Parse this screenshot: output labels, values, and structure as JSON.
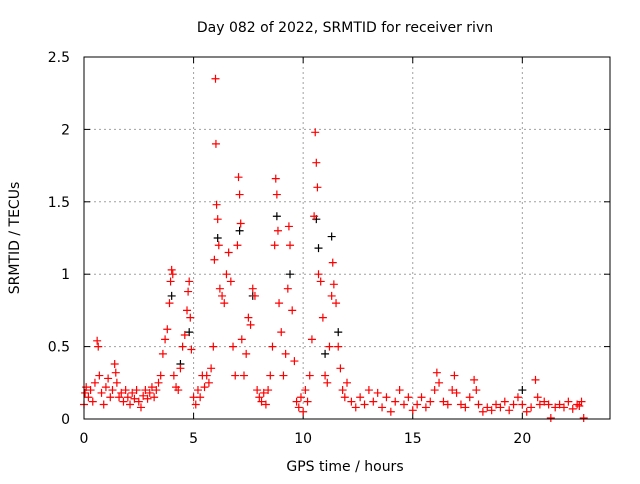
{
  "chart_data": {
    "type": "scatter",
    "title": "Day 082 of 2022, SRMTID for receiver rivn",
    "xlabel": "GPS time / hours",
    "ylabel": "SRMTID / TECUs",
    "xlim": [
      0,
      24
    ],
    "ylim": [
      0,
      2.5
    ],
    "xticks": [
      0,
      5,
      10,
      15,
      20
    ],
    "yticks": [
      0,
      0.5,
      1,
      1.5,
      2,
      2.5
    ],
    "xtick_labels": [
      "0",
      "5",
      "10",
      "15",
      "20"
    ],
    "ytick_labels": [
      "0",
      "0.5",
      "1",
      "1.5",
      "2",
      "2.5"
    ],
    "grid": true,
    "colors": {
      "primary": "#ff0000",
      "secondary": "#000000",
      "grid": "#a0a0a0"
    },
    "series": [
      {
        "name": "secondary",
        "color": "#000000",
        "points": [
          [
            4.0,
            0.85
          ],
          [
            4.8,
            0.6
          ],
          [
            6.1,
            1.25
          ],
          [
            7.1,
            1.3
          ],
          [
            7.7,
            0.85
          ],
          [
            8.8,
            1.4
          ],
          [
            9.4,
            1.0
          ],
          [
            10.6,
            1.38
          ],
          [
            10.7,
            1.18
          ],
          [
            11.3,
            1.26
          ],
          [
            11.0,
            0.45
          ],
          [
            11.6,
            0.6
          ],
          [
            20.0,
            0.2
          ],
          [
            4.4,
            0.38
          ]
        ]
      },
      {
        "name": "primary",
        "color": "#ff0000",
        "points": [
          [
            0.0,
            0.1
          ],
          [
            0.05,
            0.18
          ],
          [
            0.1,
            0.22
          ],
          [
            0.2,
            0.15
          ],
          [
            0.3,
            0.2
          ],
          [
            0.4,
            0.12
          ],
          [
            0.5,
            0.25
          ],
          [
            0.6,
            0.54
          ],
          [
            0.65,
            0.5
          ],
          [
            0.7,
            0.3
          ],
          [
            0.8,
            0.18
          ],
          [
            0.9,
            0.1
          ],
          [
            1.0,
            0.22
          ],
          [
            1.1,
            0.28
          ],
          [
            1.2,
            0.15
          ],
          [
            1.3,
            0.2
          ],
          [
            1.4,
            0.38
          ],
          [
            1.45,
            0.32
          ],
          [
            1.5,
            0.25
          ],
          [
            1.6,
            0.15
          ],
          [
            1.7,
            0.18
          ],
          [
            1.8,
            0.12
          ],
          [
            1.9,
            0.2
          ],
          [
            2.0,
            0.15
          ],
          [
            2.1,
            0.1
          ],
          [
            2.2,
            0.18
          ],
          [
            2.3,
            0.14
          ],
          [
            2.4,
            0.2
          ],
          [
            2.5,
            0.12
          ],
          [
            2.6,
            0.08
          ],
          [
            2.7,
            0.16
          ],
          [
            2.8,
            0.2
          ],
          [
            2.9,
            0.14
          ],
          [
            3.0,
            0.18
          ],
          [
            3.1,
            0.22
          ],
          [
            3.2,
            0.15
          ],
          [
            3.3,
            0.2
          ],
          [
            3.4,
            0.25
          ],
          [
            3.5,
            0.3
          ],
          [
            3.6,
            0.45
          ],
          [
            3.7,
            0.55
          ],
          [
            3.8,
            0.62
          ],
          [
            3.9,
            0.8
          ],
          [
            3.95,
            0.95
          ],
          [
            4.0,
            1.03
          ],
          [
            4.05,
            1.0
          ],
          [
            4.1,
            0.3
          ],
          [
            4.2,
            0.22
          ],
          [
            4.3,
            0.2
          ],
          [
            4.4,
            0.35
          ],
          [
            4.5,
            0.5
          ],
          [
            4.6,
            0.58
          ],
          [
            4.7,
            0.75
          ],
          [
            4.75,
            0.88
          ],
          [
            4.8,
            0.95
          ],
          [
            4.85,
            0.7
          ],
          [
            4.9,
            0.48
          ],
          [
            5.0,
            0.15
          ],
          [
            5.1,
            0.1
          ],
          [
            5.2,
            0.2
          ],
          [
            5.3,
            0.15
          ],
          [
            5.4,
            0.3
          ],
          [
            5.5,
            0.22
          ],
          [
            5.6,
            0.3
          ],
          [
            5.7,
            0.25
          ],
          [
            5.8,
            0.35
          ],
          [
            5.9,
            0.5
          ],
          [
            5.95,
            1.1
          ],
          [
            6.0,
            2.35
          ],
          [
            6.02,
            1.9
          ],
          [
            6.05,
            1.48
          ],
          [
            6.1,
            1.38
          ],
          [
            6.15,
            1.2
          ],
          [
            6.2,
            0.9
          ],
          [
            6.3,
            0.85
          ],
          [
            6.4,
            0.8
          ],
          [
            6.5,
            1.0
          ],
          [
            6.6,
            1.15
          ],
          [
            6.7,
            0.95
          ],
          [
            6.8,
            0.5
          ],
          [
            6.9,
            0.3
          ],
          [
            7.0,
            1.2
          ],
          [
            7.05,
            1.67
          ],
          [
            7.1,
            1.55
          ],
          [
            7.15,
            1.35
          ],
          [
            7.2,
            0.55
          ],
          [
            7.3,
            0.3
          ],
          [
            7.4,
            0.45
          ],
          [
            7.5,
            0.7
          ],
          [
            7.6,
            0.65
          ],
          [
            7.7,
            0.9
          ],
          [
            7.8,
            0.85
          ],
          [
            7.9,
            0.2
          ],
          [
            8.0,
            0.15
          ],
          [
            8.1,
            0.12
          ],
          [
            8.2,
            0.18
          ],
          [
            8.3,
            0.1
          ],
          [
            8.4,
            0.2
          ],
          [
            8.5,
            0.3
          ],
          [
            8.6,
            0.5
          ],
          [
            8.7,
            1.2
          ],
          [
            8.75,
            1.66
          ],
          [
            8.8,
            1.55
          ],
          [
            8.85,
            1.3
          ],
          [
            8.9,
            0.8
          ],
          [
            9.0,
            0.6
          ],
          [
            9.1,
            0.3
          ],
          [
            9.2,
            0.45
          ],
          [
            9.3,
            0.9
          ],
          [
            9.35,
            1.33
          ],
          [
            9.4,
            1.2
          ],
          [
            9.5,
            0.75
          ],
          [
            9.6,
            0.4
          ],
          [
            9.7,
            0.12
          ],
          [
            9.8,
            0.08
          ],
          [
            9.9,
            0.15
          ],
          [
            10.0,
            0.05
          ],
          [
            10.1,
            0.2
          ],
          [
            10.2,
            0.12
          ],
          [
            10.3,
            0.3
          ],
          [
            10.4,
            0.55
          ],
          [
            10.5,
            1.4
          ],
          [
            10.55,
            1.98
          ],
          [
            10.6,
            1.77
          ],
          [
            10.65,
            1.6
          ],
          [
            10.7,
            1.0
          ],
          [
            10.8,
            0.95
          ],
          [
            10.9,
            0.7
          ],
          [
            11.0,
            0.3
          ],
          [
            11.1,
            0.25
          ],
          [
            11.2,
            0.5
          ],
          [
            11.3,
            0.85
          ],
          [
            11.35,
            1.08
          ],
          [
            11.4,
            0.93
          ],
          [
            11.5,
            0.8
          ],
          [
            11.6,
            0.5
          ],
          [
            11.7,
            0.35
          ],
          [
            11.8,
            0.2
          ],
          [
            11.9,
            0.15
          ],
          [
            12.0,
            0.25
          ],
          [
            12.2,
            0.12
          ],
          [
            12.4,
            0.08
          ],
          [
            12.6,
            0.15
          ],
          [
            12.8,
            0.1
          ],
          [
            13.0,
            0.2
          ],
          [
            13.2,
            0.12
          ],
          [
            13.4,
            0.18
          ],
          [
            13.6,
            0.08
          ],
          [
            13.8,
            0.15
          ],
          [
            14.0,
            0.05
          ],
          [
            14.2,
            0.12
          ],
          [
            14.4,
            0.2
          ],
          [
            14.6,
            0.1
          ],
          [
            14.8,
            0.15
          ],
          [
            15.0,
            0.06
          ],
          [
            15.2,
            0.1
          ],
          [
            15.4,
            0.15
          ],
          [
            15.6,
            0.08
          ],
          [
            15.8,
            0.12
          ],
          [
            16.0,
            0.2
          ],
          [
            16.1,
            0.32
          ],
          [
            16.2,
            0.25
          ],
          [
            16.4,
            0.12
          ],
          [
            16.6,
            0.1
          ],
          [
            16.8,
            0.2
          ],
          [
            16.9,
            0.3
          ],
          [
            17.0,
            0.18
          ],
          [
            17.2,
            0.1
          ],
          [
            17.4,
            0.08
          ],
          [
            17.6,
            0.15
          ],
          [
            17.8,
            0.27
          ],
          [
            17.9,
            0.2
          ],
          [
            18.0,
            0.1
          ],
          [
            18.2,
            0.05
          ],
          [
            18.4,
            0.08
          ],
          [
            18.6,
            0.06
          ],
          [
            18.8,
            0.1
          ],
          [
            19.0,
            0.08
          ],
          [
            19.2,
            0.12
          ],
          [
            19.4,
            0.06
          ],
          [
            19.6,
            0.1
          ],
          [
            19.8,
            0.15
          ],
          [
            20.0,
            0.1
          ],
          [
            20.2,
            0.05
          ],
          [
            20.4,
            0.08
          ],
          [
            20.6,
            0.27
          ],
          [
            20.7,
            0.15
          ],
          [
            20.8,
            0.1
          ],
          [
            21.0,
            0.12
          ],
          [
            21.2,
            0.1
          ],
          [
            21.3,
            0.0
          ],
          [
            21.5,
            0.08
          ],
          [
            21.7,
            0.1
          ],
          [
            21.9,
            0.08
          ],
          [
            22.1,
            0.12
          ],
          [
            22.3,
            0.07
          ],
          [
            22.5,
            0.1
          ],
          [
            22.6,
            0.09
          ],
          [
            22.7,
            0.12
          ],
          [
            22.8,
            0.0
          ]
        ]
      }
    ]
  }
}
